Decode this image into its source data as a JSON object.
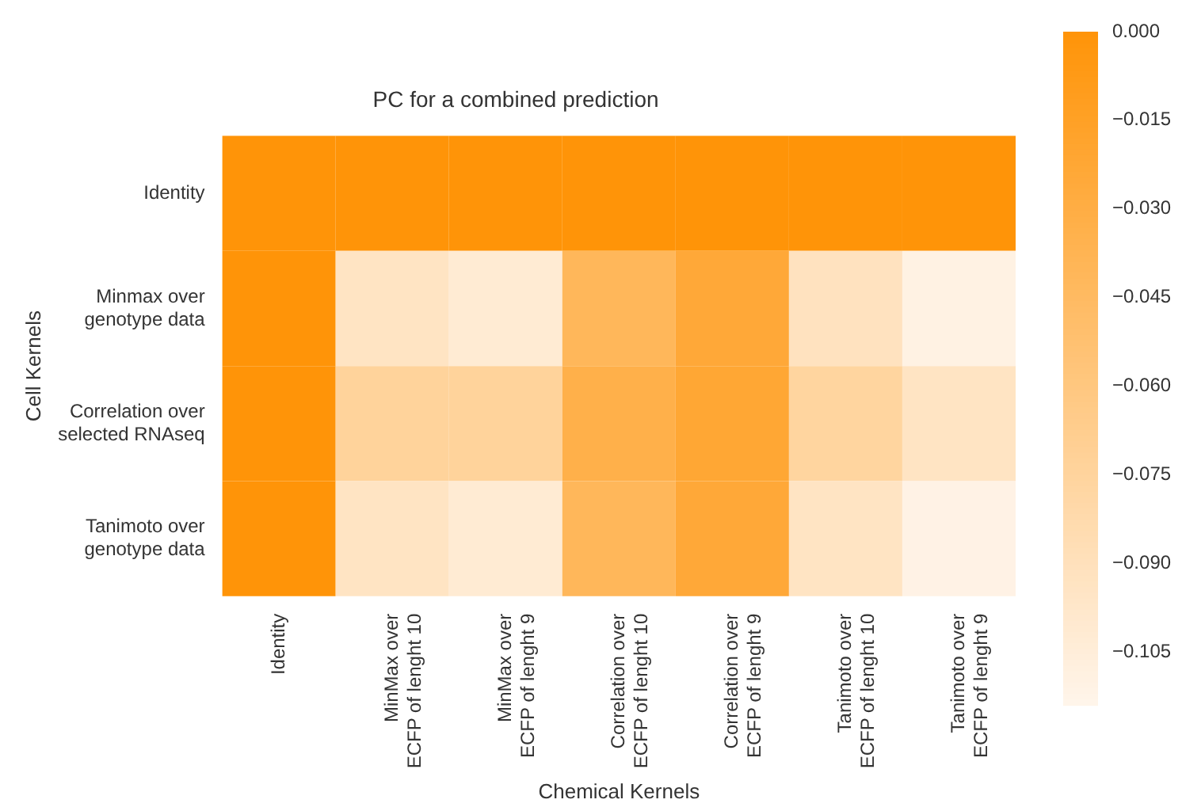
{
  "chart_data": {
    "type": "heatmap",
    "title": "PC for a combined prediction",
    "xlabel": "Chemical Kernels",
    "ylabel": "Cell Kernels",
    "categories": [
      "Identity",
      "MinMax over\nECFP of lenght 10",
      "MinMax over\nECFP of lenght 9",
      "Correlation over\nECFP of lenght 10",
      "Correlation over\nECFP of lenght 9",
      "Tanimoto over\nECFP of lenght 10",
      "Tanimoto over\nECFP of lenght 9"
    ],
    "y_categories": [
      "Identity",
      "Minmax over\ngenotype data",
      "Correlation over\nselected RNAseq",
      "Tanimoto over\ngenotype data"
    ],
    "cells": [
      [
        0,
        0,
        0,
        0,
        0,
        0,
        0
      ],
      [
        0,
        -0.094,
        -0.102,
        -0.041,
        -0.024,
        -0.092,
        -0.11
      ],
      [
        0,
        -0.074,
        -0.074,
        -0.033,
        -0.022,
        -0.076,
        -0.094
      ],
      [
        0,
        -0.094,
        -0.102,
        -0.041,
        -0.024,
        -0.094,
        -0.111
      ]
    ],
    "clim": [
      -0.114,
      0
    ],
    "cticks": [
      {
        "value": 0,
        "label": "0.000"
      },
      {
        "value": -0.015,
        "label": "−0.015"
      },
      {
        "value": -0.03,
        "label": "−0.030"
      },
      {
        "value": -0.045,
        "label": "−0.045"
      },
      {
        "value": -0.06,
        "label": "−0.060"
      },
      {
        "value": -0.075,
        "label": "−0.075"
      },
      {
        "value": -0.09,
        "label": "−0.090"
      },
      {
        "value": -0.105,
        "label": "−0.105"
      }
    ]
  }
}
